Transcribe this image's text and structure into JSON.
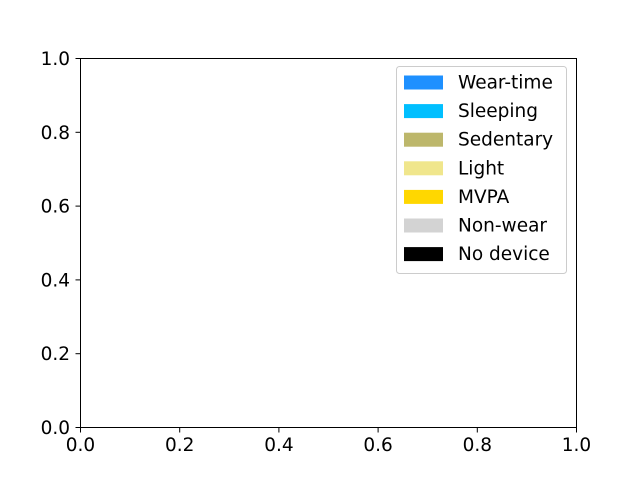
{
  "chart_data": {
    "type": "bar",
    "title": "",
    "xlabel": "",
    "ylabel": "",
    "xlim": [
      0.0,
      1.0
    ],
    "ylim": [
      0.0,
      1.0
    ],
    "x_ticks": [
      "0.0",
      "0.2",
      "0.4",
      "0.6",
      "0.8",
      "1.0"
    ],
    "y_ticks": [
      "0.0",
      "0.2",
      "0.4",
      "0.6",
      "0.8",
      "1.0"
    ],
    "grid": false,
    "legend_position": "top-right",
    "series": [
      {
        "name": "Wear-time",
        "color": "#1e90ff",
        "values": []
      },
      {
        "name": "Sleeping",
        "color": "#00bfff",
        "values": []
      },
      {
        "name": "Sedentary",
        "color": "#bdb76b",
        "values": []
      },
      {
        "name": "Light",
        "color": "#f0e68c",
        "values": []
      },
      {
        "name": "MVPA",
        "color": "#ffd700",
        "values": []
      },
      {
        "name": "Non-wear",
        "color": "#d3d3d3",
        "values": []
      },
      {
        "name": "No device",
        "color": "#000000",
        "values": []
      }
    ]
  }
}
